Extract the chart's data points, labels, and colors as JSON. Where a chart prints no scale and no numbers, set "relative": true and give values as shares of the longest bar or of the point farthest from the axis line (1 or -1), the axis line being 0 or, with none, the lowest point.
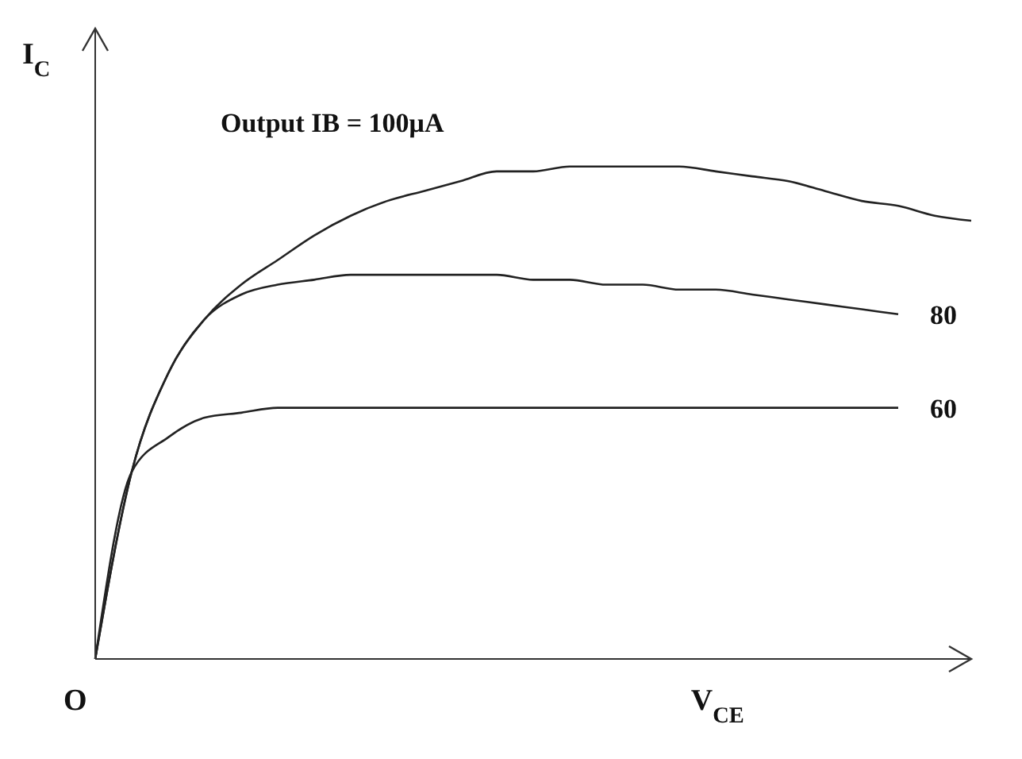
{
  "chart_data": {
    "type": "line",
    "relative": true,
    "xlabel": "V$_{CE}$",
    "ylabel": "I$_{C}$",
    "annotations": [
      "O"
    ],
    "tick_labels": false,
    "grid": false,
    "legend": false,
    "marker": "none",
    "line_style": "solid",
    "categories": [
      null,
      null,
      null,
      null,
      null,
      null,
      null,
      null,
      null,
      null,
      null,
      null,
      null,
      null,
      null,
      null,
      null,
      null,
      null,
      null,
      null,
      null,
      null,
      null,
      null
    ],
    "series": [
      {
        "name": "Output IB = 100μA",
        "color": "#222222",
        "values": [
          0,
          0.38,
          0.58,
          0.69,
          0.76,
          0.81,
          0.86,
          0.9,
          0.93,
          0.95,
          0.97,
          0.99,
          0.99,
          1,
          1,
          1,
          1,
          0.99,
          0.98,
          0.97,
          0.95,
          0.93,
          0.92,
          0.9,
          0.89
        ]
      },
      {
        "name": "80",
        "color": "#222222",
        "values": [
          0,
          0.38,
          0.58,
          0.69,
          0.74,
          0.76,
          0.77,
          0.78,
          0.78,
          0.78,
          0.78,
          0.78,
          0.77,
          0.77,
          0.76,
          0.76,
          0.75,
          0.75,
          0.74,
          0.73,
          0.72,
          0.71,
          0.7,
          null,
          null
        ]
      },
      {
        "name": "60",
        "color": "#222222",
        "values": [
          0,
          0.38,
          0.45,
          0.49,
          0.5,
          0.51,
          0.51,
          0.51,
          0.51,
          0.51,
          0.51,
          0.51,
          0.51,
          0.51,
          0.51,
          0.51,
          0.51,
          0.51,
          0.51,
          0.51,
          0.51,
          0.51,
          0.51,
          null,
          null
        ]
      }
    ]
  }
}
